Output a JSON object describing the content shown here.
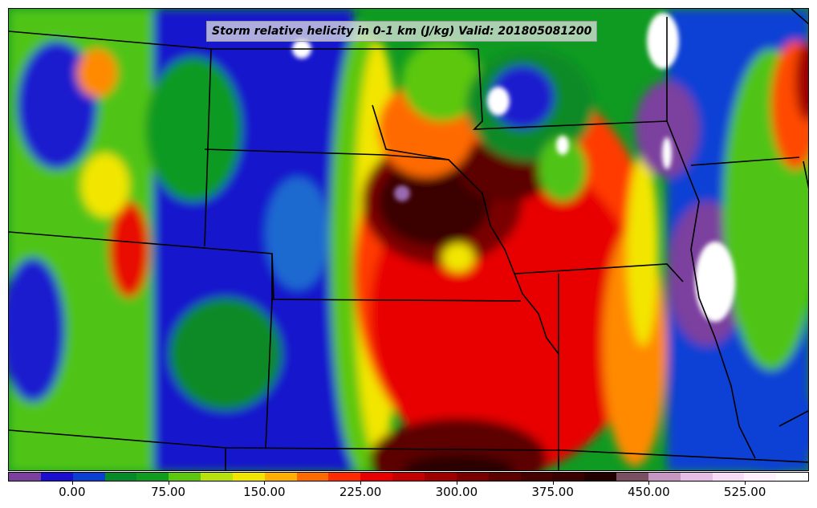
{
  "map": {
    "title": "Storm relative helicity in 0-1 km (J/kg) Valid: 201805081200",
    "variable": "Storm relative helicity in 0-1 km",
    "units": "J/kg",
    "valid_time": "201805081200"
  },
  "colorbar": {
    "colors": [
      "#7b3f9e",
      "#1a0fcf",
      "#0b3fd4",
      "#078a28",
      "#109c1e",
      "#5cc70f",
      "#b7e20c",
      "#f2e600",
      "#ffb000",
      "#ff6a00",
      "#ff2a00",
      "#e80000",
      "#c40000",
      "#9e0000",
      "#7a0000",
      "#5c0000",
      "#460000",
      "#3a0000",
      "#230000",
      "#7a5060",
      "#c696c2",
      "#e6bde6",
      "#f6dcf6",
      "#fff0ff",
      "#ffffff"
    ],
    "tick_labels": [
      "0.00",
      "75.00",
      "150.00",
      "225.00",
      "300.00",
      "375.00",
      "450.00",
      "525.00"
    ],
    "tick_values": [
      0,
      75,
      150,
      225,
      300,
      375,
      450,
      525
    ],
    "min": -50,
    "max": 575,
    "step": 25
  }
}
